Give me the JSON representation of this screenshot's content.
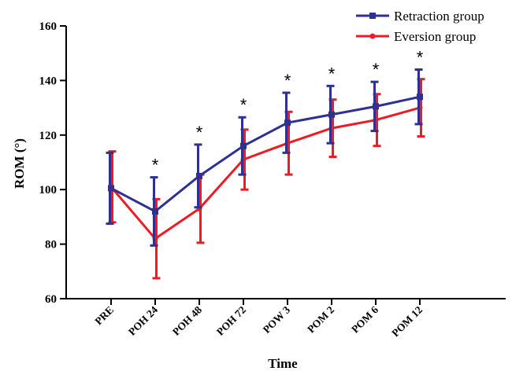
{
  "chart_data": {
    "type": "line",
    "xlabel": "Time",
    "ylabel": "ROM (°)",
    "ylim": [
      60,
      160
    ],
    "yticks": [
      60,
      80,
      100,
      120,
      140,
      160
    ],
    "categories": [
      "PRE",
      "POH 24",
      "POH 48",
      "POH 72",
      "POW 3",
      "POM 2",
      "POM 6",
      "POM 12"
    ],
    "series": [
      {
        "name": "Retraction group",
        "color": "#2e3192",
        "marker": "square",
        "values": [
          100.5,
          92,
          105,
          116,
          124.5,
          127.5,
          130.5,
          134
        ],
        "errors": [
          13,
          12.5,
          11.5,
          10.5,
          11,
          10.5,
          9,
          10
        ]
      },
      {
        "name": "Eversion group",
        "color": "#ed1c24",
        "marker": "circle",
        "values": [
          101,
          82,
          93,
          111,
          117,
          122.5,
          125.5,
          130
        ],
        "errors": [
          13,
          14.5,
          12.5,
          11,
          11.5,
          10.5,
          9.5,
          10.5
        ]
      }
    ],
    "annotations": [
      "",
      "*",
      "*",
      "*",
      "*",
      "*",
      "*",
      "*"
    ],
    "legend_position": "top-right",
    "grid": false
  }
}
